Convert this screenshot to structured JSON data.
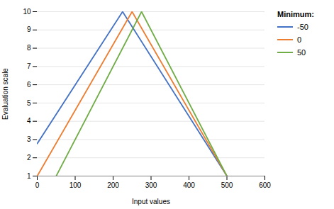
{
  "chart_data": {
    "type": "line",
    "xlabel": "Input values",
    "ylabel": "Evaluation scale",
    "legend_title": "Minimum:",
    "legend": "right",
    "grid": true,
    "series": [
      {
        "name": "-50",
        "color": "#4472C4",
        "x": [
          0,
          225,
          500
        ],
        "values": [
          2.778,
          10,
          1
        ]
      },
      {
        "name": "0",
        "color": "#ED7D31",
        "x": [
          0,
          250,
          500
        ],
        "values": [
          1,
          10,
          1
        ]
      },
      {
        "name": "50",
        "color": "#70AD47",
        "x": [
          50,
          275,
          500
        ],
        "values": [
          1,
          10,
          1
        ]
      }
    ],
    "xlim": [
      0,
      600
    ],
    "ylim": [
      1,
      10
    ],
    "xticks": [
      0,
      100,
      200,
      300,
      400,
      500,
      600
    ],
    "yticks": [
      1,
      2,
      3,
      4,
      5,
      6,
      7,
      8,
      9,
      10
    ]
  }
}
